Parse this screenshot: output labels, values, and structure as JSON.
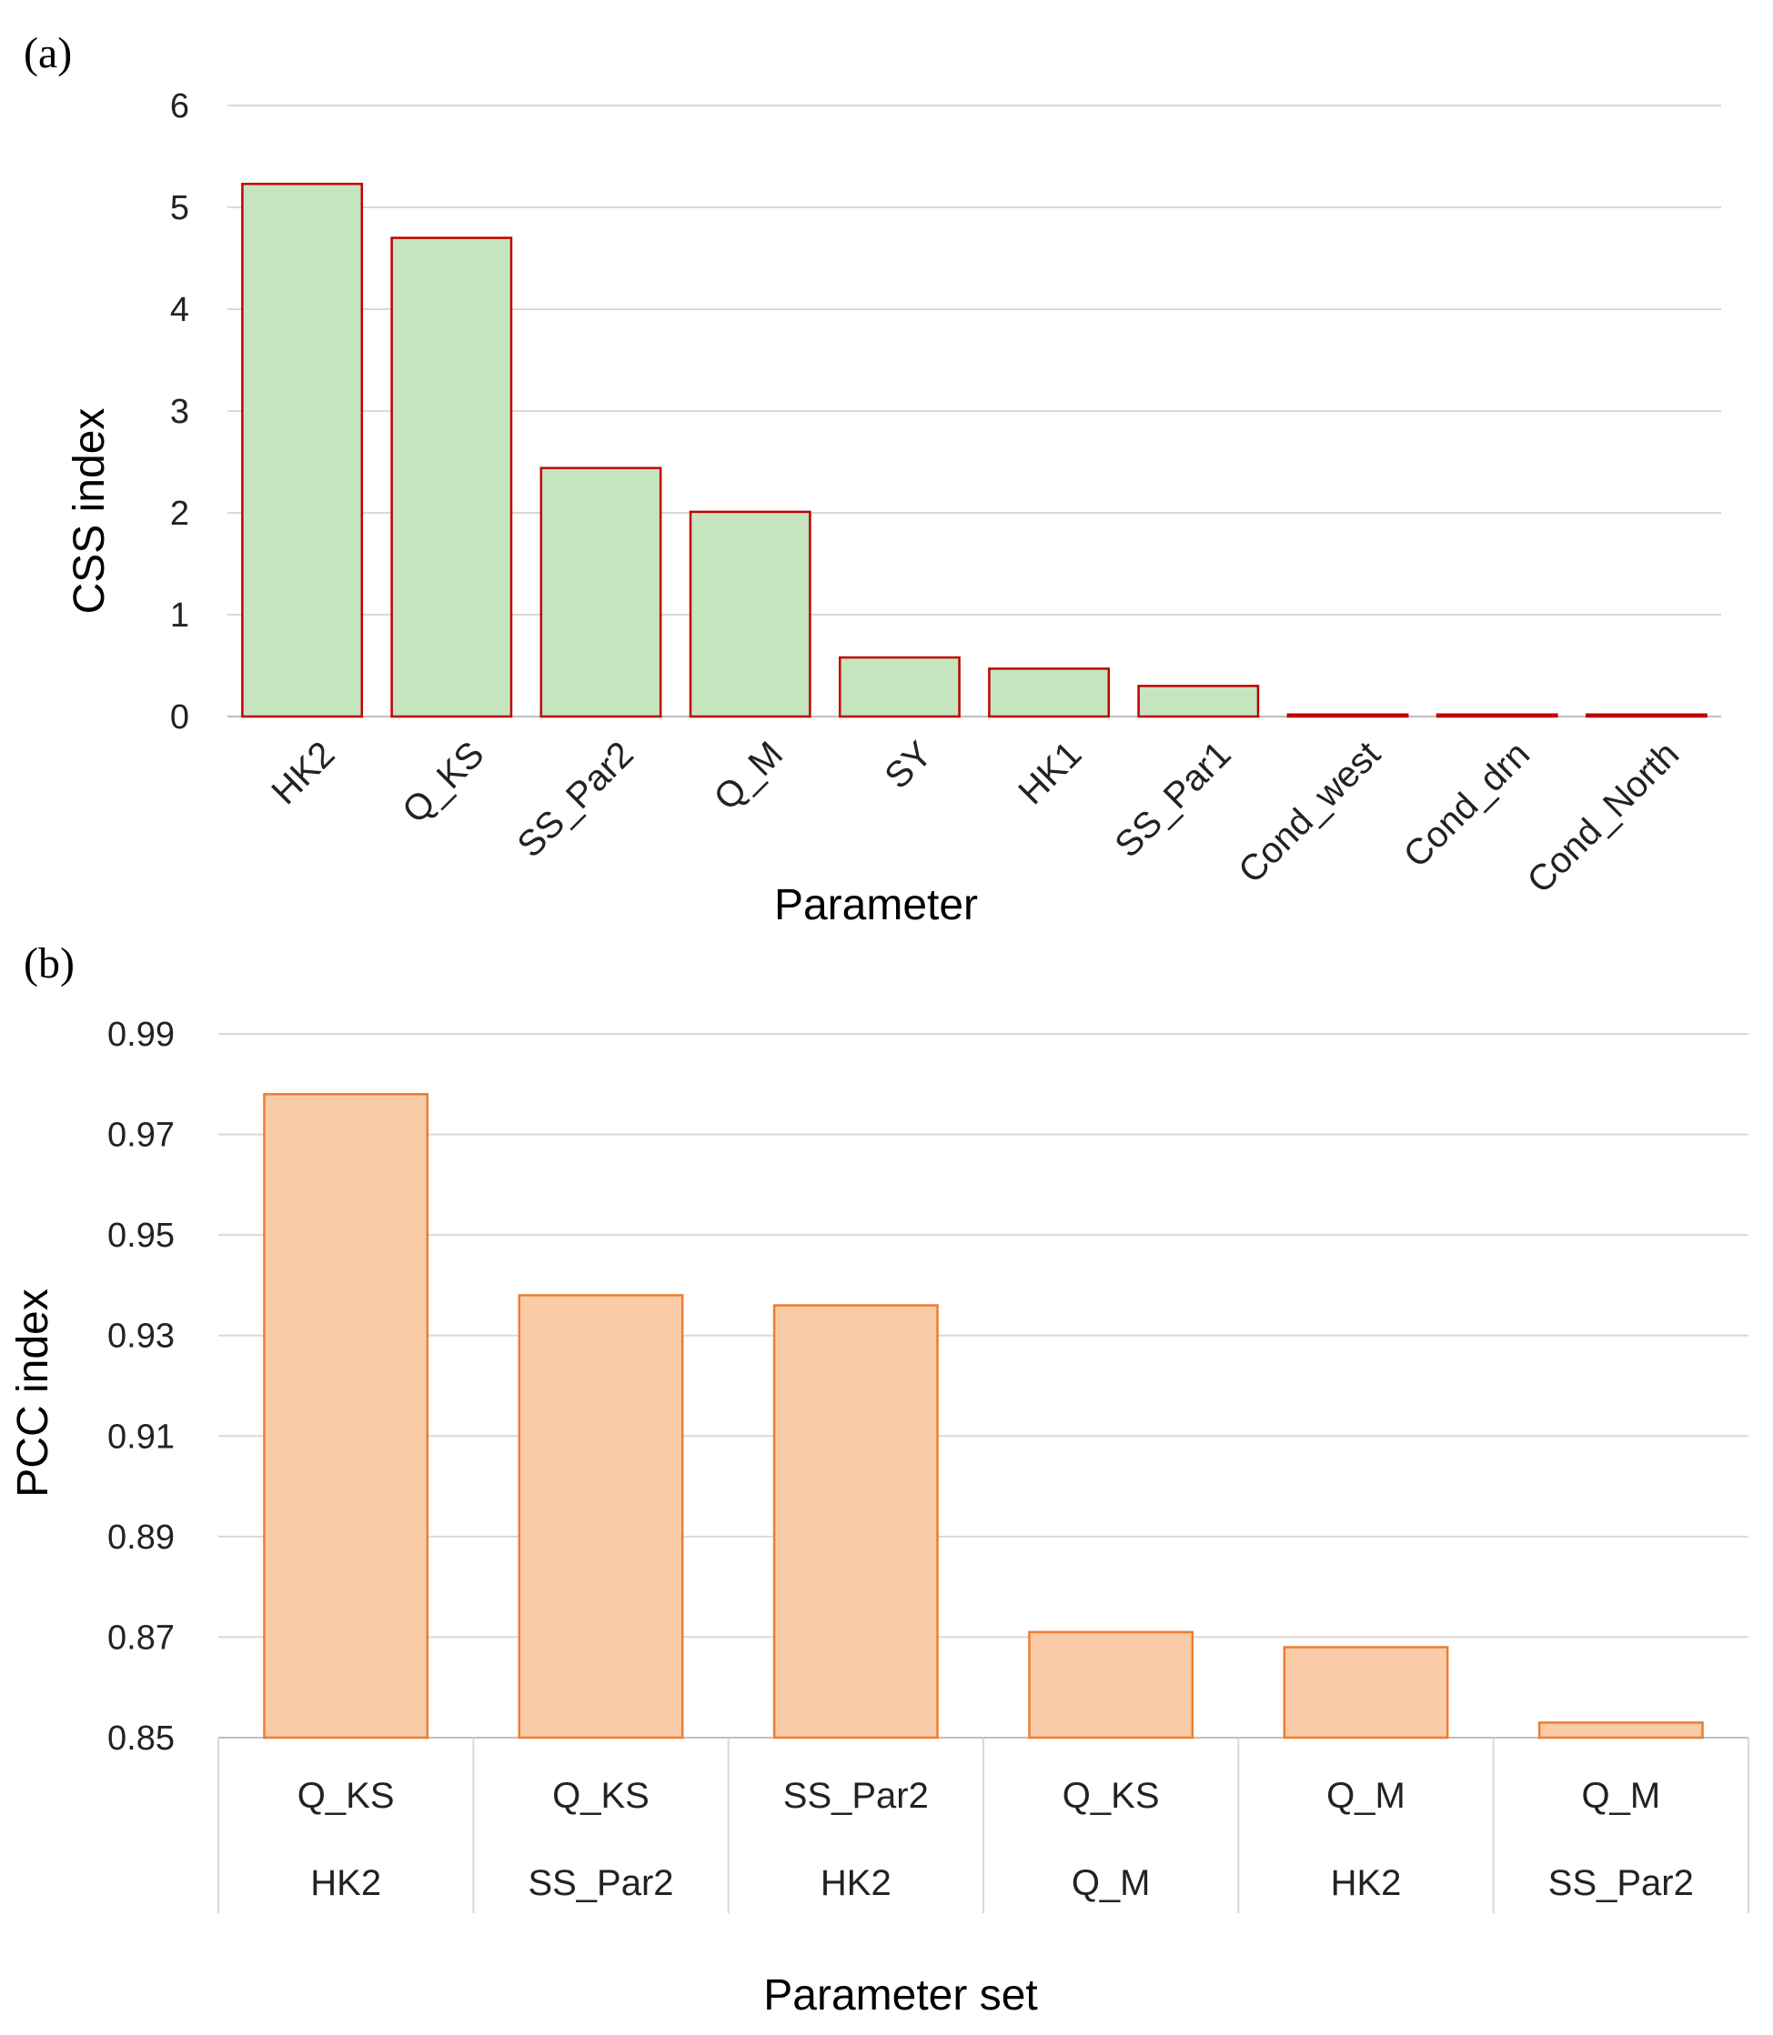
{
  "chart_data": [
    {
      "panel": "(a)",
      "type": "bar",
      "xlabel": "Parameter",
      "ylabel": "CSS index",
      "ylim": [
        0,
        6
      ],
      "yticks": [
        "0",
        "1",
        "2",
        "3",
        "4",
        "5",
        "6"
      ],
      "grid": true,
      "categories": [
        "HK2",
        "Q_KS",
        "SS_Par2",
        "Q_M",
        "SY",
        "HK1",
        "SS_Par1",
        "Cond_west",
        "Cond_drn",
        "Cond_North"
      ],
      "values": [
        5.23,
        4.7,
        2.44,
        2.01,
        0.58,
        0.47,
        0.3,
        0.02,
        0.02,
        0.02
      ],
      "colors": {
        "fill": "#c5e5bf",
        "stroke": "#c00000",
        "grid": "#d9d9d9"
      }
    },
    {
      "panel": "(b)",
      "type": "bar",
      "xlabel": "Parameter set",
      "ylabel": "PCC index",
      "ylim": [
        0.85,
        0.99
      ],
      "yticks": [
        "0.85",
        "0.87",
        "0.89",
        "0.91",
        "0.93",
        "0.95",
        "0.97",
        "0.99"
      ],
      "grid": true,
      "categories": [
        {
          "top": "Q_KS",
          "bottom": "HK2"
        },
        {
          "top": "Q_KS",
          "bottom": "SS_Par2"
        },
        {
          "top": "SS_Par2",
          "bottom": "HK2"
        },
        {
          "top": "Q_KS",
          "bottom": "Q_M"
        },
        {
          "top": "Q_M",
          "bottom": "HK2"
        },
        {
          "top": "Q_M",
          "bottom": "SS_Par2"
        }
      ],
      "values": [
        0.978,
        0.938,
        0.936,
        0.871,
        0.868,
        0.853
      ],
      "colors": {
        "fill": "#f9cba6",
        "stroke": "#ed7d31",
        "grid": "#d9d9d9"
      }
    }
  ]
}
